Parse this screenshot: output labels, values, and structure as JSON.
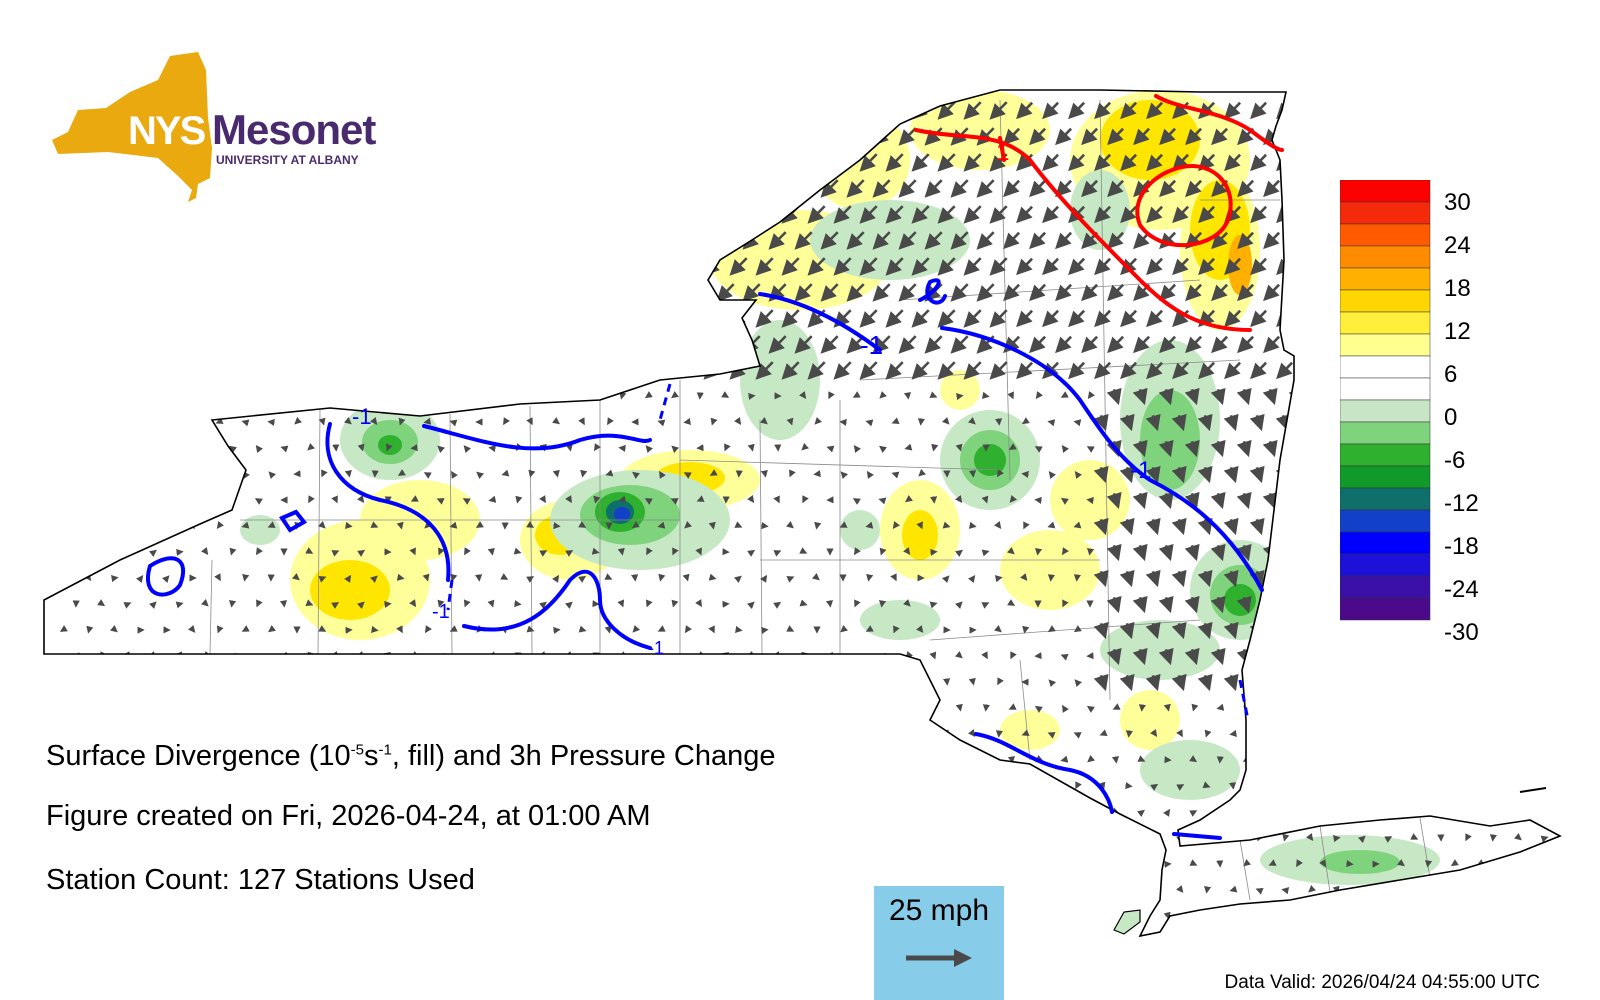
{
  "logo": {
    "brand_short": "NYS",
    "brand_name": "Mesonet",
    "subtitle": "UNIVERSITY AT ALBANY",
    "colors": {
      "gold": "#e9a90f",
      "purple": "#4a2a6e"
    }
  },
  "title": {
    "prefix": "Surface Divergence (10",
    "exp1": "-5",
    "unit_mid": "s",
    "exp2": "-1",
    "suffix": ", fill) and 3h Pressure Change"
  },
  "created_text": "Figure created on Fri, 2026-04-24, at 01:00 AM",
  "station_text": "Station Count: 127 Stations Used",
  "scale": {
    "label": "25 mph",
    "color": "#87cdea"
  },
  "data_valid": "Data Valid: 2026/04/24 04:55:00 UTC",
  "legend": {
    "labels": [
      "30",
      "24",
      "18",
      "12",
      "6",
      "0",
      "-6",
      "-12",
      "-18",
      "-24",
      "-30"
    ],
    "colors": [
      "#ff0000",
      "#f52a0a",
      "#ff5a00",
      "#ff8c00",
      "#ffb000",
      "#ffd700",
      "#ffef3a",
      "#ffff90",
      "#ffffff",
      "#ffffff",
      "#c8e6c6",
      "#7ed37c",
      "#2fb02f",
      "#109a2a",
      "#0f6f6a",
      "#1240c8",
      "#0000ff",
      "#1d10d8",
      "#3a10a8",
      "#4b0a8a"
    ]
  },
  "contour_labels": {
    "negative": "-1",
    "positive": "1"
  },
  "colors": {
    "pressure_rise": "#ff0000",
    "pressure_fall": "#0000ff",
    "wind_arrow": "#4a4a4a"
  }
}
